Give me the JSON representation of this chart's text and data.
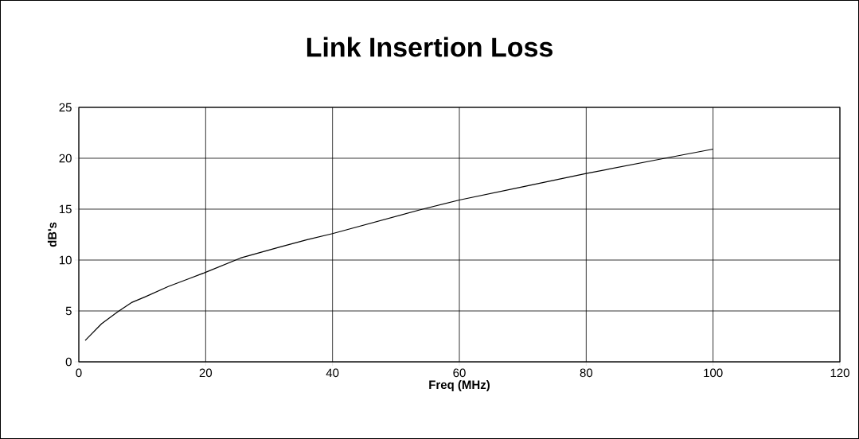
{
  "chart_data": {
    "type": "line",
    "title": "Link Insertion Loss",
    "xlabel": "Freq (MHz)",
    "ylabel": "dB's",
    "x": [
      1,
      3.6,
      6.1,
      8.4,
      10.5,
      14.1,
      17.5,
      20,
      25.5,
      31.8,
      36,
      40,
      54.2,
      60,
      70,
      80,
      92.4,
      100
    ],
    "series": [
      {
        "color": "#000000",
        "values": [
          2.1,
          3.75,
          4.9,
          5.85,
          6.4,
          7.4,
          8.2,
          8.8,
          10.2,
          11.3,
          12.0,
          12.6,
          15.0,
          15.9,
          17.2,
          18.5,
          20.0,
          20.9
        ]
      }
    ],
    "xlim": [
      0,
      120
    ],
    "xticks": [
      0,
      20,
      40,
      60,
      80,
      100,
      120
    ],
    "ylim": [
      0,
      25
    ],
    "yticks": [
      0,
      5,
      10,
      15,
      20,
      25
    ],
    "grid": true,
    "marker": "none",
    "line_style": "solid"
  }
}
